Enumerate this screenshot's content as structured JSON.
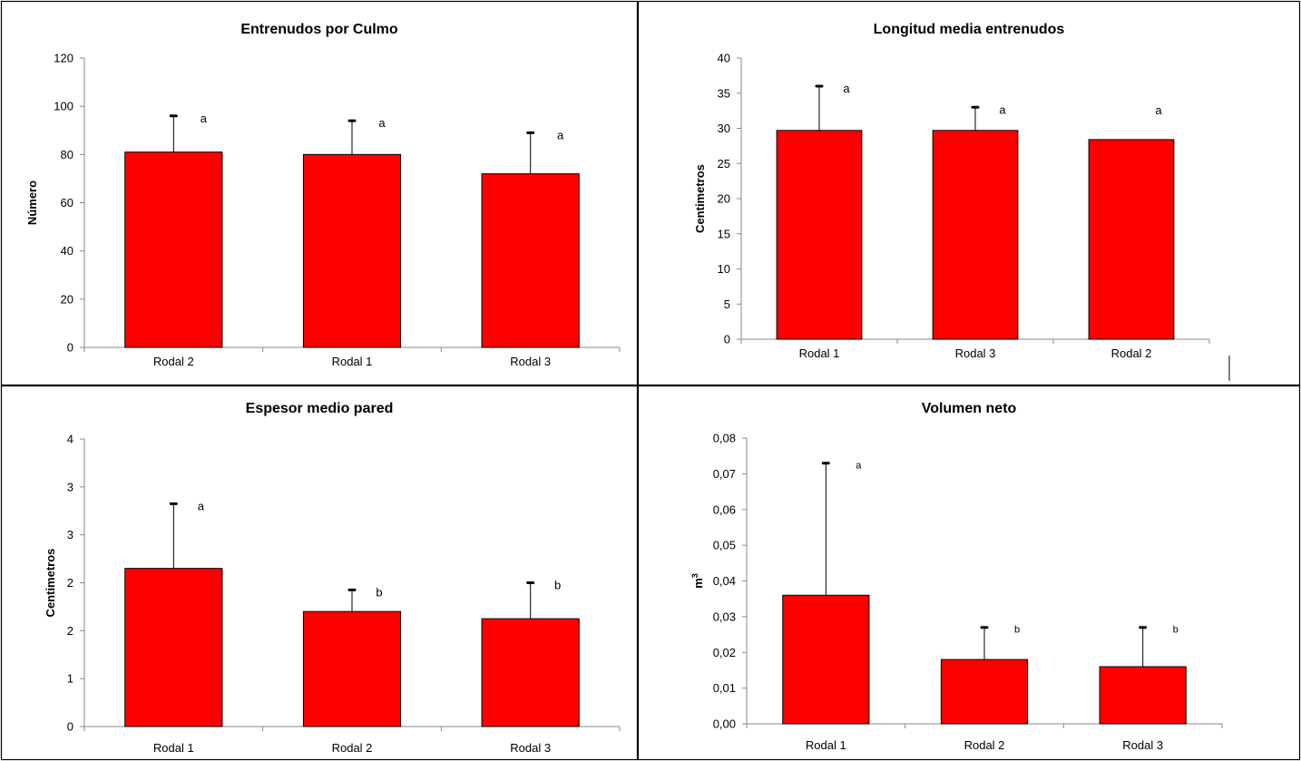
{
  "colors": {
    "bar": "#ff0000",
    "border": "#000000",
    "background": "#ffffff"
  },
  "chart_data": [
    {
      "type": "bar",
      "title": "Entrenudos por Culmo",
      "ylabel": "Número",
      "xlabel": "",
      "ylim": [
        0,
        120
      ],
      "yticks": [
        "0",
        "20",
        "40",
        "60",
        "80",
        "100",
        "120"
      ],
      "categories": [
        "Rodal 2",
        "Rodal 1",
        "Rodal 3"
      ],
      "values": [
        81,
        80,
        72
      ],
      "error_upper": [
        96,
        94,
        89
      ],
      "annotations": [
        "a",
        "a",
        "a"
      ],
      "grid": false,
      "legend": "none"
    },
    {
      "type": "bar",
      "title": "Longitud media entrenudos",
      "ylabel": "Centimetros",
      "xlabel": "",
      "ylim": [
        0,
        40
      ],
      "yticks": [
        "0",
        "5",
        "10",
        "15",
        "20",
        "25",
        "30",
        "35",
        "40"
      ],
      "categories": [
        "Rodal 1",
        "Rodal 3",
        "Rodal 2"
      ],
      "values": [
        29.7,
        29.7,
        28.4
      ],
      "error_upper": [
        36,
        33,
        null
      ],
      "annotations": [
        "a",
        "a",
        "a"
      ],
      "grid": false,
      "legend": "none"
    },
    {
      "type": "bar",
      "title": "Espesor medio pared",
      "ylabel": "Centimetros",
      "xlabel": "",
      "ylim": [
        0,
        4
      ],
      "yticks": [
        "0",
        "1",
        "2",
        "2",
        "3",
        "3",
        "4"
      ],
      "categories": [
        "Rodal 1",
        "Rodal 2",
        "Rodal 3"
      ],
      "values": [
        2.2,
        1.6,
        1.5
      ],
      "error_upper": [
        3.1,
        1.9,
        2.0
      ],
      "annotations": [
        "a",
        "b",
        "b"
      ],
      "grid": false,
      "legend": "none"
    },
    {
      "type": "bar",
      "title": "Volumen neto",
      "ylabel": "m³",
      "xlabel": "",
      "ylim": [
        0,
        0.08
      ],
      "yticks": [
        "0,00",
        "0,01",
        "0,02",
        "0,03",
        "0,04",
        "0,05",
        "0,06",
        "0,07",
        "0,08"
      ],
      "categories": [
        "Rodal 1",
        "Rodal 2",
        "Rodal 3"
      ],
      "values": [
        0.036,
        0.018,
        0.016
      ],
      "error_upper": [
        0.073,
        0.027,
        0.027
      ],
      "annotations": [
        "a",
        "b",
        "b"
      ],
      "grid": false,
      "legend": "none"
    }
  ]
}
